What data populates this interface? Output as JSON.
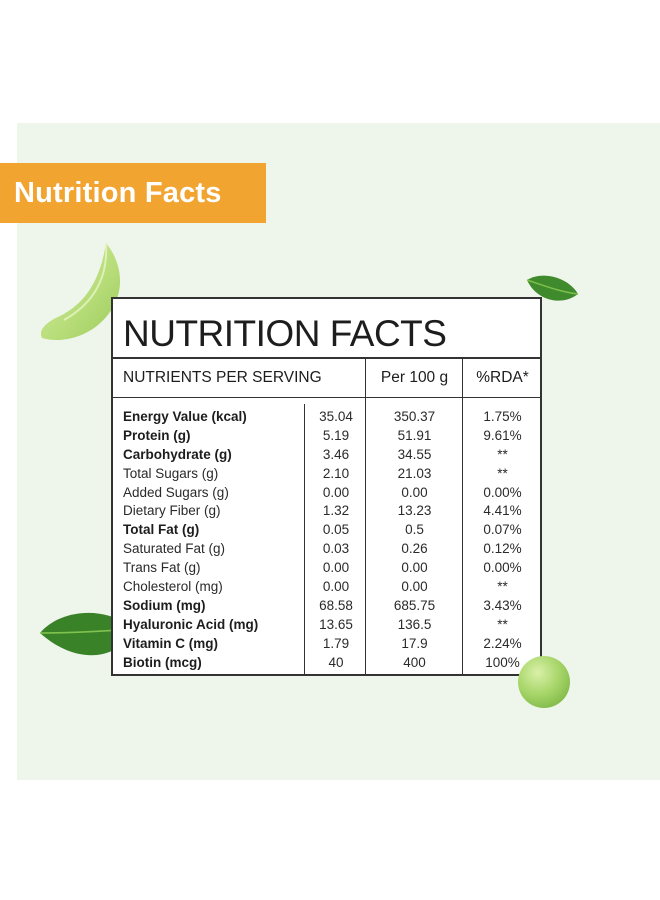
{
  "banner": {
    "title": "Nutrition Facts"
  },
  "card": {
    "title": "NUTRITION FACTS",
    "headers": {
      "nutrients": "NUTRIENTS PER SERVING",
      "per100": "Per 100 g",
      "rda": "%RDA*"
    },
    "rows": [
      {
        "name": "Energy Value (kcal)",
        "bold": true,
        "serving": "35.04",
        "per100": "350.37",
        "rda": "1.75%"
      },
      {
        "name": "Protein (g)",
        "bold": true,
        "serving": "5.19",
        "per100": "51.91",
        "rda": "9.61%"
      },
      {
        "name": "Carbohydrate (g)",
        "bold": true,
        "serving": "3.46",
        "per100": "34.55",
        "rda": "**"
      },
      {
        "name": "Total Sugars (g)",
        "bold": false,
        "serving": "2.10",
        "per100": "21.03",
        "rda": "**"
      },
      {
        "name": "Added Sugars (g)",
        "bold": false,
        "serving": "0.00",
        "per100": "0.00",
        "rda": "0.00%"
      },
      {
        "name": "Dietary Fiber (g)",
        "bold": false,
        "serving": "1.32",
        "per100": "13.23",
        "rda": "4.41%"
      },
      {
        "name": "Total Fat (g)",
        "bold": true,
        "serving": "0.05",
        "per100": "0.5",
        "rda": "0.07%"
      },
      {
        "name": "Saturated Fat (g)",
        "bold": false,
        "serving": "0.03",
        "per100": "0.26",
        "rda": "0.12%"
      },
      {
        "name": "Trans Fat (g)",
        "bold": false,
        "serving": "0.00",
        "per100": "0.00",
        "rda": "0.00%"
      },
      {
        "name": "Cholesterol (mg)",
        "bold": false,
        "serving": "0.00",
        "per100": "0.00",
        "rda": "**"
      },
      {
        "name": "Sodium (mg)",
        "bold": true,
        "serving": "68.58",
        "per100": "685.75",
        "rda": "3.43%"
      },
      {
        "name": "Hyaluronic Acid (mg)",
        "bold": true,
        "serving": "13.65",
        "per100": "136.5",
        "rda": "**"
      },
      {
        "name": "Vitamin C (mg)",
        "bold": true,
        "serving": "1.79",
        "per100": "17.9",
        "rda": "2.24%"
      },
      {
        "name": "Biotin (mcg)",
        "bold": true,
        "serving": "40",
        "per100": "400",
        "rda": "100%"
      }
    ]
  },
  "colors": {
    "banner": "#f2a431",
    "panel": "#eef6ec",
    "border": "#333333"
  },
  "decorations": [
    "pea-pod-slice",
    "green-leaf-top-right",
    "green-leaf-bottom-left",
    "green-pea"
  ]
}
